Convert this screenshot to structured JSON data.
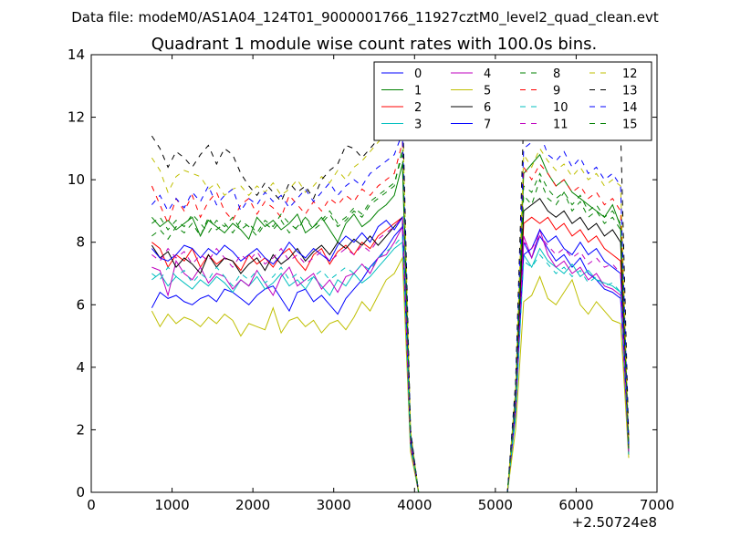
{
  "chart_data": {
    "type": "line",
    "suptitle": "Data file: modeM0/AS1A04_124T01_9000001766_11927cztM0_level2_quad_clean.evt",
    "title": "Quadrant 1 module wise count rates with 100.0s bins.",
    "xlabel": "",
    "ylabel": "",
    "x_offset_label": "+2.50724e8",
    "xlim": [
      0,
      7000
    ],
    "ylim": [
      0,
      14
    ],
    "xticks": [
      0,
      1000,
      2000,
      3000,
      4000,
      5000,
      6000,
      7000
    ],
    "yticks": [
      0,
      2,
      4,
      6,
      8,
      10,
      12,
      14
    ],
    "grid": false,
    "legend_position": "top-right",
    "legend_columns": 4,
    "colors": [
      "#0000ff",
      "#008000",
      "#ff0000",
      "#00bfbf",
      "#bf00bf",
      "#bfbf00",
      "#000000",
      "#0000ff",
      "#008000",
      "#ff0000",
      "#00bfbf",
      "#bf00bf",
      "#bfbf00",
      "#000000",
      "#0000ff",
      "#008000"
    ],
    "x": [
      750,
      850,
      950,
      1050,
      1150,
      1250,
      1350,
      1450,
      1550,
      1650,
      1750,
      1850,
      1950,
      2050,
      2150,
      2250,
      2350,
      2450,
      2550,
      2650,
      2750,
      2850,
      2950,
      3050,
      3150,
      3250,
      3350,
      3450,
      3550,
      3650,
      3750,
      3850,
      3950,
      4050,
      4150,
      4250,
      4350,
      4450,
      4550,
      4650,
      4750,
      4850,
      4950,
      5050,
      5150,
      5250,
      5350,
      5450,
      5550,
      5650,
      5750,
      5850,
      5950,
      6050,
      6150,
      6250,
      6350,
      6450,
      6550,
      6650
    ],
    "series": [
      {
        "name": "0",
        "linestyle": "solid",
        "values": [
          5.9,
          6.4,
          6.2,
          6.3,
          6.1,
          6.0,
          6.2,
          6.3,
          6.1,
          6.5,
          6.4,
          6.2,
          6.0,
          6.3,
          6.5,
          6.6,
          6.2,
          5.8,
          6.4,
          6.5,
          6.1,
          6.3,
          6.0,
          5.7,
          6.2,
          6.5,
          6.8,
          7.2,
          7.5,
          7.8,
          8.2,
          8.5,
          1.5,
          0.0,
          0.0,
          0.0,
          0.0,
          0.0,
          0.0,
          0.0,
          0.0,
          0.0,
          0.0,
          0.0,
          0.0,
          2.5,
          8.0,
          7.5,
          8.2,
          7.8,
          7.4,
          7.6,
          7.2,
          7.5,
          7.0,
          6.8,
          6.5,
          6.4,
          6.2,
          1.2
        ]
      },
      {
        "name": "1",
        "linestyle": "solid",
        "values": [
          8.8,
          8.5,
          8.7,
          8.4,
          8.6,
          8.8,
          8.2,
          8.7,
          8.5,
          8.3,
          8.6,
          8.4,
          8.1,
          8.8,
          8.5,
          8.7,
          8.4,
          8.6,
          8.9,
          8.3,
          8.5,
          8.8,
          8.4,
          8.0,
          8.6,
          8.9,
          8.5,
          8.7,
          9.0,
          9.2,
          9.5,
          10.5,
          1.8,
          0.0,
          0.0,
          0.0,
          0.0,
          0.0,
          0.0,
          0.0,
          0.0,
          0.0,
          0.0,
          0.0,
          0.0,
          3.0,
          10.2,
          10.5,
          10.8,
          10.2,
          9.8,
          10.0,
          9.6,
          9.4,
          9.2,
          9.0,
          8.8,
          9.2,
          8.5,
          1.5
        ]
      },
      {
        "name": "2",
        "linestyle": "solid",
        "values": [
          8.0,
          7.8,
          7.2,
          7.6,
          7.4,
          7.8,
          7.2,
          7.6,
          7.3,
          7.5,
          7.4,
          7.1,
          7.6,
          7.3,
          7.5,
          7.2,
          7.6,
          7.8,
          7.4,
          7.1,
          7.6,
          7.8,
          7.3,
          7.7,
          7.9,
          7.6,
          8.0,
          7.8,
          8.2,
          8.4,
          8.6,
          8.8,
          1.6,
          0.0,
          0.0,
          0.0,
          0.0,
          0.0,
          0.0,
          0.0,
          0.0,
          0.0,
          0.0,
          0.0,
          0.0,
          2.8,
          8.6,
          8.8,
          8.6,
          8.8,
          8.4,
          8.6,
          8.2,
          8.4,
          8.0,
          8.2,
          7.8,
          7.6,
          7.4,
          1.3
        ]
      },
      {
        "name": "3",
        "linestyle": "solid",
        "values": [
          6.8,
          7.0,
          6.6,
          6.9,
          6.7,
          6.5,
          6.8,
          6.6,
          6.9,
          6.7,
          6.4,
          6.8,
          6.6,
          6.9,
          6.5,
          6.7,
          7.0,
          6.6,
          6.8,
          6.5,
          6.9,
          6.6,
          6.3,
          6.8,
          6.6,
          7.0,
          6.7,
          6.9,
          7.2,
          7.5,
          7.8,
          8.0,
          1.4,
          0.0,
          0.0,
          0.0,
          0.0,
          0.0,
          0.0,
          0.0,
          0.0,
          0.0,
          0.0,
          0.0,
          0.0,
          2.4,
          7.6,
          7.2,
          7.8,
          7.4,
          7.2,
          7.0,
          7.3,
          6.9,
          7.1,
          6.8,
          6.7,
          6.6,
          6.4,
          1.2
        ]
      },
      {
        "name": "4",
        "linestyle": "solid",
        "values": [
          7.2,
          7.1,
          6.3,
          7.4,
          7.0,
          6.8,
          7.2,
          6.7,
          7.0,
          6.9,
          6.5,
          6.8,
          6.6,
          7.1,
          6.7,
          6.3,
          6.9,
          7.2,
          6.6,
          6.8,
          7.0,
          6.5,
          6.8,
          6.4,
          6.9,
          7.0,
          7.3,
          7.0,
          7.5,
          7.6,
          8.0,
          8.5,
          1.5,
          0.0,
          0.0,
          0.0,
          0.0,
          0.0,
          0.0,
          0.0,
          0.0,
          0.0,
          0.0,
          0.0,
          0.0,
          2.6,
          8.2,
          7.5,
          8.4,
          7.6,
          7.2,
          7.4,
          7.0,
          7.2,
          6.8,
          7.0,
          6.6,
          6.5,
          6.3,
          1.2
        ]
      },
      {
        "name": "5",
        "linestyle": "solid",
        "values": [
          5.8,
          5.3,
          5.7,
          5.4,
          5.6,
          5.5,
          5.3,
          5.6,
          5.4,
          5.7,
          5.5,
          5.0,
          5.4,
          5.3,
          5.2,
          5.9,
          5.1,
          5.5,
          5.6,
          5.3,
          5.5,
          5.1,
          5.4,
          5.5,
          5.2,
          5.6,
          6.1,
          5.8,
          6.3,
          6.8,
          7.0,
          7.5,
          1.3,
          0.0,
          0.0,
          0.0,
          0.0,
          0.0,
          0.0,
          0.0,
          0.0,
          0.0,
          0.0,
          0.0,
          0.0,
          2.0,
          6.1,
          6.3,
          6.9,
          6.2,
          6.0,
          6.4,
          6.8,
          6.0,
          5.7,
          6.1,
          5.8,
          5.5,
          5.4,
          1.1
        ]
      },
      {
        "name": "6",
        "linestyle": "solid",
        "values": [
          7.9,
          7.5,
          7.7,
          7.2,
          7.5,
          7.3,
          7.0,
          7.6,
          7.2,
          7.5,
          7.4,
          7.0,
          7.3,
          7.5,
          7.1,
          7.6,
          7.3,
          7.5,
          7.8,
          7.4,
          7.7,
          7.9,
          7.6,
          8.0,
          7.8,
          8.1,
          7.9,
          8.2,
          7.9,
          8.2,
          8.5,
          8.8,
          1.6,
          0.0,
          0.0,
          0.0,
          0.0,
          0.0,
          0.0,
          0.0,
          0.0,
          0.0,
          0.0,
          0.0,
          0.0,
          2.9,
          9.0,
          9.2,
          9.4,
          9.0,
          8.8,
          9.0,
          8.6,
          8.8,
          8.4,
          8.6,
          8.2,
          8.4,
          8.0,
          1.4
        ]
      },
      {
        "name": "7",
        "linestyle": "solid",
        "values": [
          7.8,
          7.5,
          7.4,
          7.6,
          7.9,
          7.8,
          7.5,
          7.8,
          7.6,
          7.9,
          7.7,
          7.4,
          7.6,
          7.8,
          7.5,
          7.3,
          7.6,
          8.0,
          7.7,
          7.5,
          7.8,
          7.6,
          7.4,
          7.9,
          8.2,
          8.0,
          8.3,
          8.0,
          8.5,
          8.7,
          8.4,
          8.8,
          1.7,
          0.0,
          0.0,
          0.0,
          0.0,
          0.0,
          0.0,
          0.0,
          0.0,
          0.0,
          0.0,
          0.0,
          0.0,
          2.7,
          7.6,
          7.8,
          8.4,
          8.0,
          8.2,
          7.8,
          7.6,
          8.0,
          7.6,
          7.8,
          7.4,
          7.2,
          7.0,
          1.3
        ]
      },
      {
        "name": "8",
        "linestyle": "dashed",
        "values": [
          8.2,
          8.4,
          8.1,
          8.5,
          8.3,
          8.6,
          8.2,
          8.8,
          8.4,
          8.6,
          8.3,
          8.7,
          8.5,
          8.2,
          8.6,
          8.4,
          8.7,
          8.3,
          8.5,
          8.8,
          8.4,
          8.6,
          8.9,
          8.5,
          8.7,
          9.0,
          8.8,
          9.2,
          9.4,
          9.6,
          9.8,
          11.0,
          1.9,
          0.0,
          0.0,
          0.0,
          0.0,
          0.0,
          0.0,
          0.0,
          0.0,
          0.0,
          0.0,
          0.0,
          0.0,
          3.1,
          9.5,
          9.2,
          10.0,
          9.4,
          9.2,
          9.6,
          9.0,
          9.3,
          8.8,
          9.0,
          8.6,
          8.8,
          8.4,
          1.4
        ]
      },
      {
        "name": "9",
        "linestyle": "dashed",
        "values": [
          9.8,
          9.2,
          8.6,
          9.4,
          9.0,
          9.5,
          8.8,
          9.3,
          9.6,
          9.0,
          8.7,
          9.2,
          9.4,
          8.9,
          9.3,
          9.1,
          8.8,
          9.5,
          9.2,
          8.9,
          9.3,
          9.0,
          9.4,
          9.2,
          9.5,
          9.3,
          9.7,
          9.5,
          9.8,
          10.0,
          10.2,
          11.2,
          1.9,
          0.0,
          0.0,
          0.0,
          0.0,
          0.0,
          0.0,
          0.0,
          0.0,
          0.0,
          0.0,
          0.0,
          0.0,
          3.2,
          10.4,
          10.0,
          10.5,
          10.2,
          9.8,
          10.0,
          9.6,
          9.8,
          9.4,
          9.6,
          9.2,
          9.4,
          9.0,
          1.5
        ]
      },
      {
        "name": "10",
        "linestyle": "dashed",
        "values": [
          7.0,
          6.8,
          7.2,
          6.9,
          7.1,
          6.7,
          7.0,
          6.8,
          7.2,
          6.9,
          6.6,
          7.0,
          6.8,
          7.1,
          6.7,
          6.9,
          7.2,
          6.8,
          7.0,
          6.7,
          6.9,
          7.1,
          6.8,
          7.0,
          7.2,
          7.0,
          7.3,
          7.1,
          7.5,
          7.7,
          7.9,
          8.2,
          1.5,
          0.0,
          0.0,
          0.0,
          0.0,
          0.0,
          0.0,
          0.0,
          0.0,
          0.0,
          0.0,
          0.0,
          0.0,
          2.5,
          7.4,
          7.2,
          7.6,
          7.3,
          7.0,
          7.2,
          6.9,
          7.1,
          6.7,
          6.9,
          6.6,
          6.7,
          6.4,
          1.2
        ]
      },
      {
        "name": "11",
        "linestyle": "dashed",
        "values": [
          7.6,
          7.4,
          7.8,
          7.5,
          7.7,
          7.3,
          7.6,
          7.4,
          7.8,
          7.5,
          7.2,
          7.6,
          7.4,
          7.7,
          7.3,
          7.5,
          7.8,
          7.4,
          7.6,
          7.3,
          7.5,
          7.7,
          7.4,
          7.6,
          7.8,
          7.6,
          7.9,
          7.7,
          8.1,
          8.3,
          8.5,
          8.8,
          1.6,
          0.0,
          0.0,
          0.0,
          0.0,
          0.0,
          0.0,
          0.0,
          0.0,
          0.0,
          0.0,
          0.0,
          0.0,
          2.7,
          8.0,
          7.8,
          8.2,
          7.9,
          7.6,
          7.8,
          7.5,
          7.7,
          7.3,
          7.5,
          7.2,
          7.3,
          7.0,
          1.3
        ]
      },
      {
        "name": "12",
        "linestyle": "dashed",
        "values": [
          10.7,
          10.3,
          9.6,
          10.1,
          10.3,
          10.2,
          10.1,
          9.7,
          9.9,
          9.5,
          9.7,
          9.8,
          9.5,
          9.8,
          9.6,
          9.9,
          9.5,
          9.7,
          10.0,
          9.6,
          9.8,
          10.1,
          9.9,
          10.3,
          10.0,
          10.4,
          10.6,
          10.9,
          11.2,
          11.5,
          11.8,
          12.2,
          2.0,
          0.0,
          0.0,
          0.0,
          0.0,
          0.0,
          0.0,
          0.0,
          0.0,
          0.0,
          0.0,
          0.0,
          0.0,
          3.3,
          10.8,
          10.4,
          11.0,
          10.6,
          10.3,
          10.5,
          10.1,
          10.4,
          10.0,
          10.2,
          9.8,
          10.0,
          9.8,
          1.6
        ]
      },
      {
        "name": "13",
        "linestyle": "dashed",
        "values": [
          11.4,
          11.0,
          10.4,
          10.9,
          10.7,
          10.4,
          10.8,
          11.1,
          10.5,
          11.0,
          10.8,
          10.2,
          9.8,
          9.5,
          9.9,
          9.6,
          9.3,
          9.9,
          9.6,
          9.8,
          9.4,
          10.0,
          10.3,
          10.5,
          11.1,
          11.0,
          10.7,
          11.0,
          11.3,
          11.5,
          11.8,
          12.5,
          2.0,
          0.0,
          0.0,
          0.0,
          0.0,
          0.0,
          0.0,
          0.0,
          0.0,
          0.0,
          0.0,
          0.0,
          0.0,
          3.5,
          12.0,
          12.5,
          13.2,
          12.6,
          12.2,
          12.4,
          12.0,
          12.3,
          11.9,
          12.1,
          11.7,
          11.9,
          11.6,
          1.7
        ]
      },
      {
        "name": "14",
        "linestyle": "dashed",
        "values": [
          9.2,
          9.5,
          9.0,
          9.4,
          9.1,
          9.6,
          9.3,
          9.8,
          9.2,
          9.5,
          9.7,
          9.0,
          9.4,
          9.2,
          9.6,
          9.3,
          9.5,
          9.1,
          9.4,
          9.7,
          9.3,
          9.6,
          9.9,
          9.5,
          9.8,
          10.0,
          9.8,
          10.2,
          10.4,
          10.6,
          10.8,
          11.5,
          1.9,
          0.0,
          0.0,
          0.0,
          0.0,
          0.0,
          0.0,
          0.0,
          0.0,
          0.0,
          0.0,
          0.0,
          0.0,
          3.2,
          11.0,
          11.2,
          11.5,
          10.8,
          10.6,
          10.9,
          10.4,
          10.7,
          10.2,
          10.4,
          10.0,
          10.2,
          9.8,
          1.5
        ]
      },
      {
        "name": "15",
        "linestyle": "dashed",
        "values": [
          8.6,
          8.8,
          8.4,
          8.7,
          8.5,
          8.9,
          8.6,
          8.3,
          8.7,
          8.5,
          8.8,
          8.4,
          8.6,
          8.3,
          8.7,
          8.5,
          8.9,
          8.6,
          8.4,
          8.8,
          8.5,
          8.7,
          9.0,
          8.6,
          8.8,
          9.1,
          8.9,
          9.3,
          9.5,
          9.7,
          9.9,
          10.8,
          1.8,
          0.0,
          0.0,
          0.0,
          0.0,
          0.0,
          0.0,
          0.0,
          0.0,
          0.0,
          0.0,
          0.0,
          0.0,
          3.0,
          9.8,
          9.6,
          10.2,
          9.7,
          9.4,
          9.6,
          9.2,
          9.5,
          9.0,
          9.2,
          8.8,
          9.0,
          8.6,
          1.4
        ]
      }
    ]
  }
}
